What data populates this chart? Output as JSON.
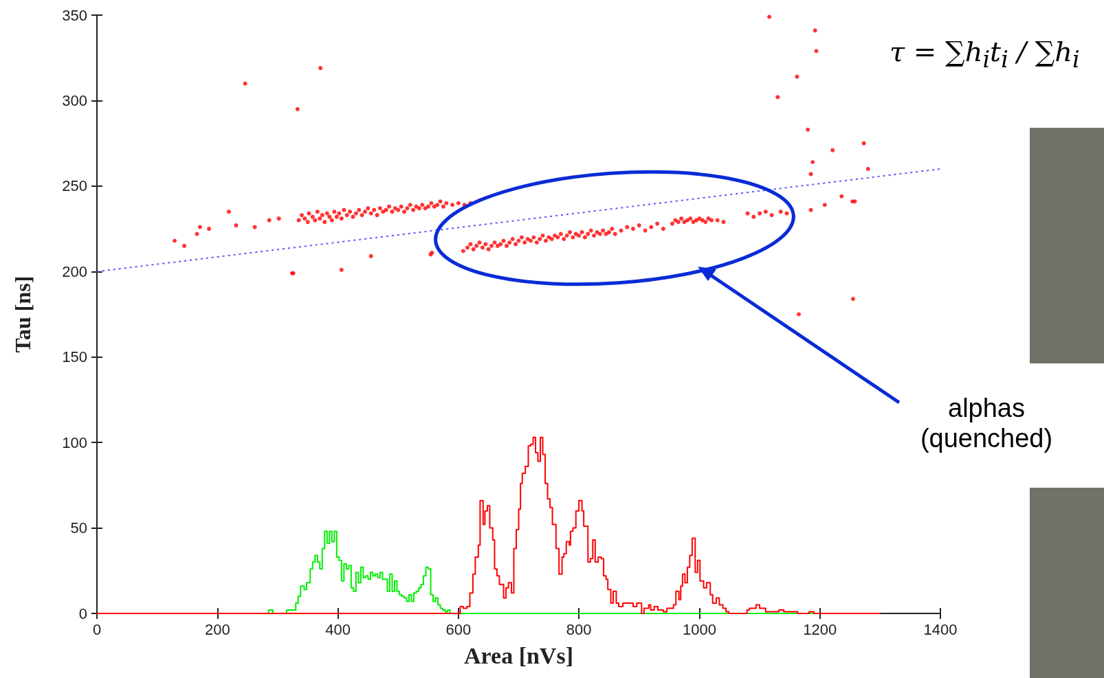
{
  "chart_data": {
    "type": "scatter",
    "xlabel": "Area [nVs]",
    "ylabel": "Tau [ns]",
    "annotations": [
      "τ = ∑h$_{i}$t$_{i}$ / ∑h$_{i}$",
      "alphas (quenched)"
    ],
    "xlim": [
      0,
      1400
    ],
    "xticks": [
      0,
      200,
      400,
      600,
      800,
      1000,
      1200,
      1400
    ],
    "ylim": [
      0,
      350
    ],
    "yticks": [
      0,
      50,
      100,
      150,
      200,
      250,
      300,
      350
    ],
    "grid": false,
    "series": [
      {
        "marker": "circle",
        "color": "#ff0000",
        "x": [
          335,
          340,
          345,
          350,
          352,
          358,
          362,
          366,
          370,
          374,
          378,
          382,
          386,
          390,
          394,
          398,
          402,
          406,
          410,
          415,
          420,
          425,
          430,
          435,
          440,
          445,
          450,
          455,
          460,
          465,
          470,
          475,
          480,
          485,
          490,
          495,
          500,
          505,
          510,
          515,
          520,
          525,
          530,
          535,
          540,
          545,
          550,
          555,
          560,
          565,
          570,
          575,
          580,
          590,
          600,
          610,
          620,
          608,
          615,
          620,
          625,
          630,
          635,
          640,
          645,
          650,
          655,
          660,
          665,
          670,
          675,
          680,
          685,
          690,
          695,
          700,
          705,
          710,
          715,
          720,
          725,
          730,
          735,
          740,
          745,
          750,
          755,
          760,
          765,
          770,
          775,
          780,
          785,
          790,
          795,
          800,
          805,
          810,
          815,
          820,
          825,
          830,
          835,
          840,
          845,
          850,
          855,
          860,
          870,
          880,
          890,
          900,
          910,
          920,
          930,
          940,
          955,
          960,
          965,
          970,
          975,
          980,
          985,
          990,
          995,
          1000,
          1005,
          1010,
          1015,
          1020,
          1030,
          1040,
          1080,
          1090,
          1100,
          1110,
          1120,
          1135,
          1145,
          129,
          145,
          166,
          171,
          186,
          219,
          231,
          246,
          262,
          286,
          302,
          324,
          326,
          333,
          371,
          406,
          455,
          554,
          556,
          1116,
          1130,
          1162,
          1165,
          1180,
          1185,
          1185,
          1188,
          1192,
          1194,
          1208,
          1221,
          1236,
          1254,
          1255,
          1258,
          1273,
          1280
        ],
        "values": [
          230,
          233,
          231,
          229,
          234,
          232,
          230,
          235,
          231,
          233,
          229,
          234,
          232,
          230,
          235,
          232,
          234,
          231,
          236,
          233,
          235,
          232,
          234,
          236,
          233,
          235,
          237,
          234,
          236,
          233,
          237,
          235,
          236,
          238,
          235,
          237,
          236,
          238,
          235,
          237,
          239,
          236,
          238,
          237,
          239,
          237,
          238,
          240,
          238,
          239,
          241,
          238,
          240,
          239,
          240,
          239,
          240,
          212,
          214,
          216,
          213,
          215,
          217,
          214,
          216,
          213,
          215,
          217,
          215,
          216,
          218,
          215,
          217,
          219,
          216,
          218,
          220,
          217,
          219,
          218,
          220,
          217,
          219,
          221,
          218,
          220,
          219,
          221,
          220,
          222,
          219,
          221,
          223,
          220,
          222,
          221,
          223,
          220,
          222,
          224,
          221,
          223,
          222,
          224,
          222,
          223,
          225,
          222,
          224,
          226,
          225,
          227,
          224,
          226,
          228,
          225,
          228,
          230,
          229,
          231,
          229,
          230,
          231,
          229,
          230,
          231,
          230,
          229,
          231,
          230,
          230,
          229,
          234,
          232,
          234,
          235,
          233,
          235,
          234,
          218,
          215,
          222,
          226,
          225,
          235,
          227,
          310,
          226,
          230,
          231,
          199,
          199,
          295,
          319,
          201,
          209,
          210,
          211,
          349,
          302,
          314,
          175,
          283,
          257,
          236,
          264,
          341,
          329,
          239,
          271,
          244,
          241,
          184,
          241,
          275,
          260
        ]
      },
      {
        "type": "line",
        "marker": "none",
        "line_style": "dotted",
        "color": "#5555ff",
        "x": [
          0,
          1400
        ],
        "values": [
          200,
          260
        ]
      },
      {
        "type": "step",
        "marker": "none",
        "line_style": "solid",
        "color": "#00ee00",
        "x": [
          0,
          285,
          292,
          315,
          330,
          334,
          338,
          344,
          348,
          354,
          358,
          362,
          366,
          370,
          374,
          378,
          382,
          386,
          390,
          394,
          398,
          402,
          406,
          410,
          414,
          418,
          422,
          426,
          430,
          434,
          438,
          442,
          446,
          450,
          454,
          458,
          462,
          466,
          470,
          474,
          478,
          482,
          486,
          490,
          494,
          498,
          502,
          506,
          510,
          514,
          518,
          522,
          526,
          530,
          534,
          538,
          542,
          546,
          550,
          554,
          558,
          562,
          566,
          570,
          574,
          578,
          582,
          586,
          1300
        ],
        "values": [
          0,
          2,
          0,
          2,
          6,
          10,
          16,
          14,
          18,
          26,
          30,
          34,
          30,
          26,
          38,
          48,
          41,
          48,
          42,
          48,
          33,
          31,
          19,
          29,
          26,
          28,
          15,
          13,
          24,
          18,
          27,
          21,
          22,
          20,
          24,
          22,
          23,
          21,
          24,
          20,
          20,
          13,
          23,
          13,
          19,
          13,
          11,
          10,
          9,
          7,
          11,
          7,
          12,
          13,
          15,
          17,
          22,
          27,
          26,
          11,
          7,
          9,
          5,
          3,
          2,
          1,
          2,
          0,
          0
        ]
      },
      {
        "type": "step",
        "marker": "none",
        "line_style": "solid",
        "color": "#ff0000",
        "x": [
          0,
          603,
          608,
          614,
          619,
          624,
          628,
          633,
          636,
          641,
          644,
          648,
          652,
          657,
          660,
          664,
          668,
          675,
          679,
          683,
          688,
          692,
          696,
          700,
          703,
          706,
          711,
          716,
          720,
          724,
          728,
          732,
          736,
          740,
          744,
          748,
          752,
          756,
          762,
          767,
          772,
          775,
          779,
          784,
          786,
          790,
          795,
          800,
          805,
          808,
          815,
          819,
          823,
          827,
          832,
          837,
          841,
          845,
          848,
          853,
          857,
          862,
          866,
          873,
          890,
          896,
          904,
          908,
          916,
          919,
          925,
          931,
          940,
          946,
          957,
          961,
          966,
          969,
          972,
          976,
          980,
          984,
          988,
          993,
          997,
          1001,
          1007,
          1012,
          1018,
          1022,
          1028,
          1033,
          1039,
          1044,
          1049,
          1079,
          1083,
          1094,
          1100,
          1110,
          1117,
          1132,
          1140,
          1163,
          1182,
          1190,
          1300
        ],
        "values": [
          0,
          4,
          3,
          4,
          12,
          23,
          33,
          40,
          66,
          52,
          60,
          63,
          50,
          43,
          26,
          22,
          17,
          9,
          15,
          18,
          12,
          38,
          49,
          61,
          76,
          82,
          86,
          98,
          99,
          103,
          94,
          89,
          103,
          93,
          76,
          67,
          62,
          52,
          38,
          23,
          33,
          35,
          42,
          40,
          48,
          50,
          60,
          66,
          60,
          51,
          30,
          32,
          43,
          30,
          33,
          32,
          22,
          20,
          14,
          6,
          13,
          6,
          4,
          6,
          4,
          6,
          0,
          3,
          5,
          2,
          4,
          2,
          1,
          3,
          5,
          13,
          8,
          16,
          23,
          18,
          27,
          34,
          44,
          24,
          31,
          19,
          15,
          18,
          11,
          6,
          9,
          5,
          3,
          1,
          0,
          2,
          3,
          5,
          3,
          1,
          1,
          2,
          1,
          0,
          1,
          0,
          0
        ]
      }
    ]
  }
}
